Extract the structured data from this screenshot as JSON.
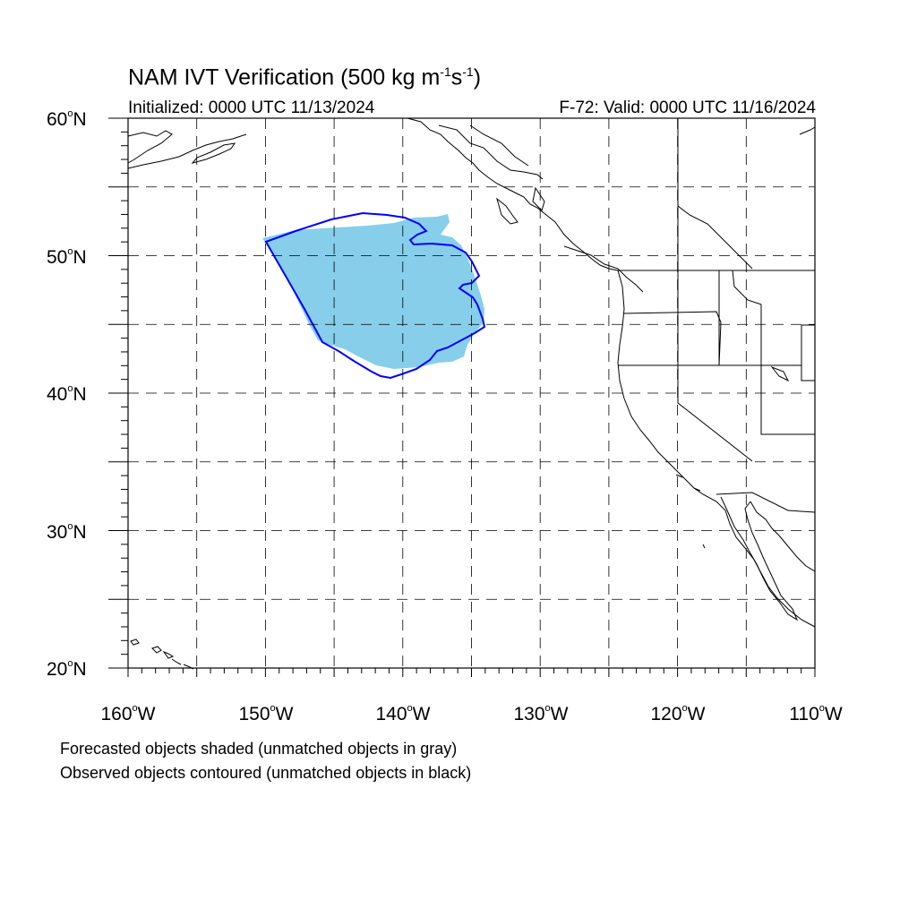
{
  "title": {
    "prefix": "NAM IVT Verification (500 kg m",
    "exp1": "-1",
    "mid": "s",
    "exp2": "-1",
    "suffix": ")"
  },
  "initialized": "Initialized: 0000 UTC 11/13/2024",
  "valid": "F-72: Valid: 0000 UTC 11/16/2024",
  "lat_labels": [
    "60",
    "50",
    "40",
    "30",
    "20"
  ],
  "lat_suffix": "N",
  "lon_labels": [
    "160",
    "150",
    "140",
    "130",
    "120",
    "110"
  ],
  "lon_suffix": "W",
  "footer": {
    "line1": "Forecasted objects shaded (unmatched objects in gray)",
    "line2": "Observed objects contoured (unmatched objects in black)"
  },
  "colors": {
    "forecast_fill": "#87CEEB",
    "observed_contour": "#0000FF",
    "coastline": "#000000",
    "grid": "#000000"
  },
  "map_extent": {
    "lon_min": -160,
    "lon_max": -110,
    "lat_min": 20,
    "lat_max": 60
  },
  "grid_spacing_deg": 5
}
